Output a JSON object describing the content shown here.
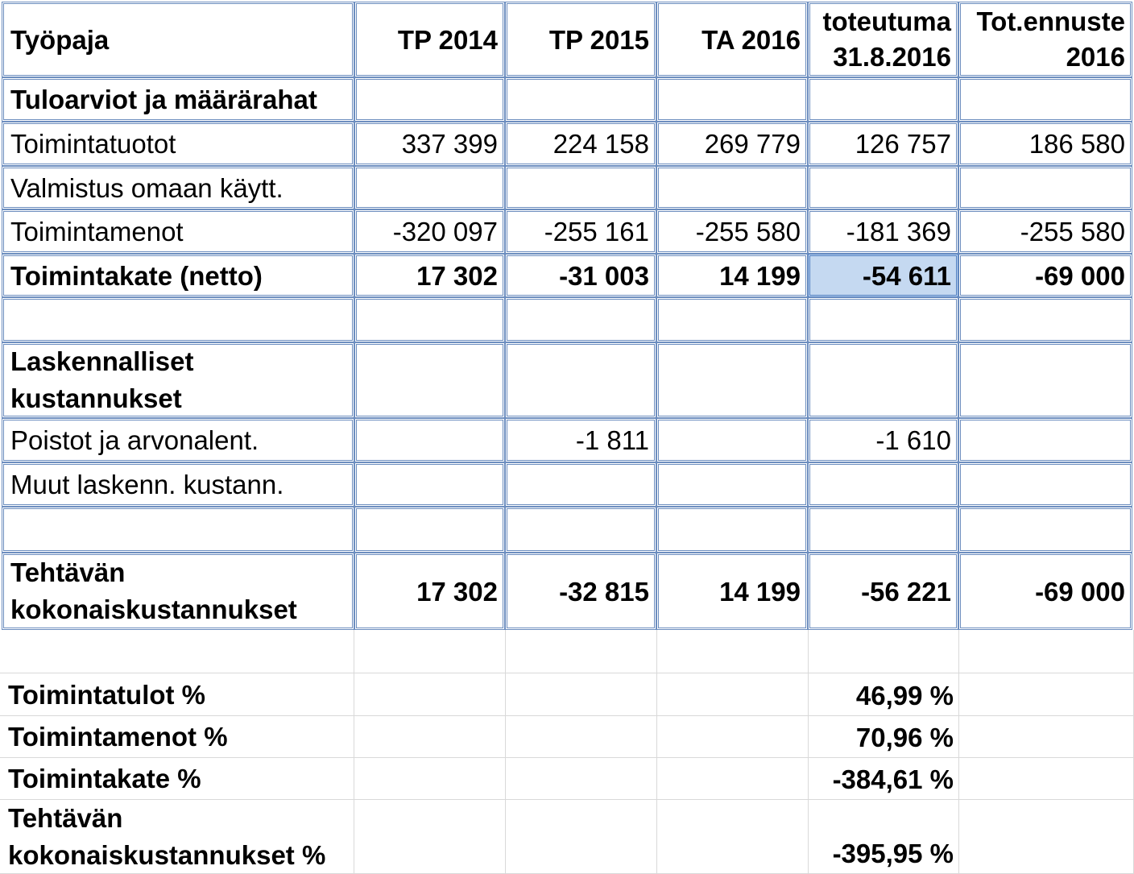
{
  "columns": [
    "Työpaja",
    "TP 2014",
    "TP 2015",
    "TA 2016",
    "toteutuma 31.8.2016",
    "Tot.ennuste 2016"
  ],
  "header": {
    "col0": "Työpaja",
    "col1": "TP 2014",
    "col2": "TP 2015",
    "col3": "TA 2016",
    "col4_line1": "toteutuma",
    "col4_line2": "31.8.2016",
    "col5_line1": "Tot.ennuste",
    "col5_line2": "2016"
  },
  "rows": [
    {
      "label": "Tuloarviot ja määrärahat",
      "values": [
        "",
        "",
        "",
        "",
        ""
      ]
    },
    {
      "label": "Toimintatuotot",
      "values": [
        "337 399",
        "224 158",
        "269 779",
        "126 757",
        "186 580"
      ]
    },
    {
      "label": "Valmistus omaan käytt.",
      "values": [
        "",
        "",
        "",
        "",
        ""
      ]
    },
    {
      "label": "Toimintamenot",
      "values": [
        "-320 097",
        "-255 161",
        "-255 580",
        "-181 369",
        "-255 580"
      ]
    },
    {
      "label": "Toimintakate (netto)",
      "values": [
        "17 302",
        "-31 003",
        "14 199",
        "-54 611",
        "-69 000"
      ]
    },
    {
      "label": "",
      "values": [
        "",
        "",
        "",
        "",
        ""
      ]
    },
    {
      "label_line1": "Laskennalliset",
      "label_line2": "kustannukset",
      "values": [
        "",
        "",
        "",
        "",
        ""
      ]
    },
    {
      "label": "Poistot ja arvonalent.",
      "values": [
        "",
        "-1 811",
        "",
        "-1 610",
        ""
      ]
    },
    {
      "label": "Muut laskenn. kustann.",
      "values": [
        "",
        "",
        "",
        "",
        ""
      ]
    },
    {
      "label": "",
      "values": [
        "",
        "",
        "",
        "",
        ""
      ]
    },
    {
      "label_line1": "Tehtävän",
      "label_line2": "kokonaiskustannukset",
      "values": [
        "17 302",
        "-32 815",
        "14 199",
        "-56 221",
        "-69 000"
      ]
    }
  ],
  "ratios": [
    {
      "label": "Toimintatulot %",
      "value": "46,99 %"
    },
    {
      "label": "Toimintamenot %",
      "value": "70,96 %"
    },
    {
      "label": "Toimintakate %",
      "value": "-384,61 %"
    },
    {
      "label_line1": "Tehtävän",
      "label_line2": "kokonaiskustannukset %",
      "value": "-395,95 %"
    }
  ],
  "selected_cell": "Toimintakate (netto) / toteutuma 31.8.2016",
  "colors": {
    "border": "#6d8ebf",
    "selection": "#c5d9f1",
    "gridline": "#d9d9d9"
  }
}
